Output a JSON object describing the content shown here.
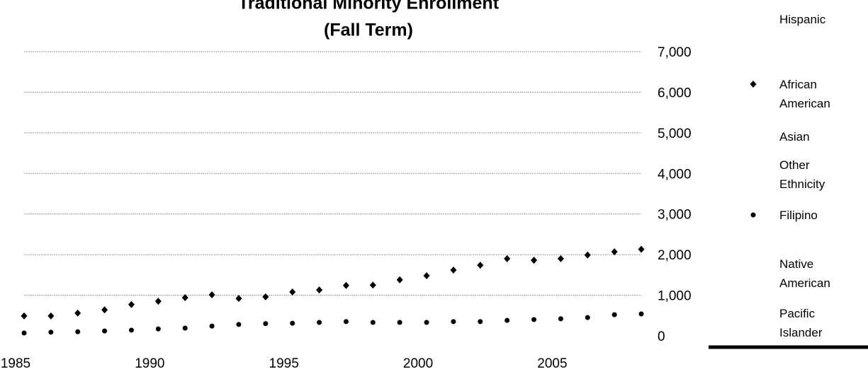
{
  "chart_data": {
    "type": "scatter",
    "title": [
      "Traditional Minority Enrollment",
      "(Fall Term)"
    ],
    "x": [
      1985,
      1986,
      1987,
      1988,
      1989,
      1990,
      1991,
      1992,
      1993,
      1994,
      1995,
      1996,
      1997,
      1998,
      1999,
      2000,
      2001,
      2002,
      2003,
      2004,
      2005,
      2006,
      2007,
      2008
    ],
    "series": [
      {
        "name": "Hispanic",
        "values": [
          null,
          null,
          null,
          null,
          null,
          null,
          null,
          null,
          null,
          null,
          null,
          null,
          null,
          null,
          null,
          null,
          null,
          null,
          null,
          null,
          null,
          null,
          null,
          null
        ]
      },
      {
        "name": "African American",
        "color": "#000000",
        "marker": "diamond",
        "values": [
          490,
          490,
          560,
          640,
          770,
          850,
          940,
          1010,
          920,
          960,
          1080,
          1130,
          1240,
          1250,
          1380,
          1480,
          1620,
          1740,
          1900,
          1860,
          1900,
          1990,
          2070,
          2130
        ]
      },
      {
        "name": "Asian",
        "values": [
          null,
          null,
          null,
          null,
          null,
          null,
          null,
          null,
          null,
          null,
          null,
          null,
          null,
          null,
          null,
          null,
          null,
          null,
          null,
          null,
          null,
          null,
          null,
          null
        ]
      },
      {
        "name": "Other Ethnicity",
        "values": [
          null,
          null,
          null,
          null,
          null,
          null,
          null,
          null,
          null,
          null,
          null,
          null,
          null,
          null,
          null,
          null,
          null,
          null,
          null,
          null,
          null,
          null,
          null,
          null
        ]
      },
      {
        "name": "Filipino",
        "color": "#000000",
        "marker": "circle",
        "values": [
          70,
          90,
          100,
          120,
          140,
          170,
          190,
          240,
          280,
          300,
          310,
          330,
          350,
          330,
          330,
          330,
          350,
          350,
          380,
          400,
          420,
          450,
          520,
          540
        ]
      },
      {
        "name": "Native American",
        "values": [
          null,
          null,
          null,
          null,
          null,
          null,
          null,
          null,
          null,
          null,
          null,
          null,
          null,
          null,
          null,
          null,
          null,
          null,
          null,
          null,
          null,
          null,
          null,
          null
        ]
      },
      {
        "name": "Pacific Islander",
        "values": [
          null,
          null,
          null,
          null,
          null,
          null,
          null,
          null,
          null,
          null,
          null,
          null,
          null,
          null,
          null,
          null,
          null,
          null,
          null,
          null,
          null,
          null,
          null,
          null
        ]
      }
    ],
    "xlim": [
      1985,
      2008
    ],
    "xticks": [
      1985,
      1990,
      1995,
      2000,
      2005
    ],
    "ylim": [
      0,
      7000
    ],
    "yticks": [
      0,
      {
        "value": 1000,
        "label": "1,000"
      },
      {
        "value": 2000,
        "label": "2,000"
      },
      {
        "value": 3000,
        "label": "3,000"
      },
      {
        "value": 4000,
        "label": "4,000"
      },
      {
        "value": 5000,
        "label": "5,000"
      },
      {
        "value": 6000,
        "label": "6,000"
      },
      {
        "value": 7000,
        "label": "7,000"
      }
    ],
    "grid": true
  }
}
